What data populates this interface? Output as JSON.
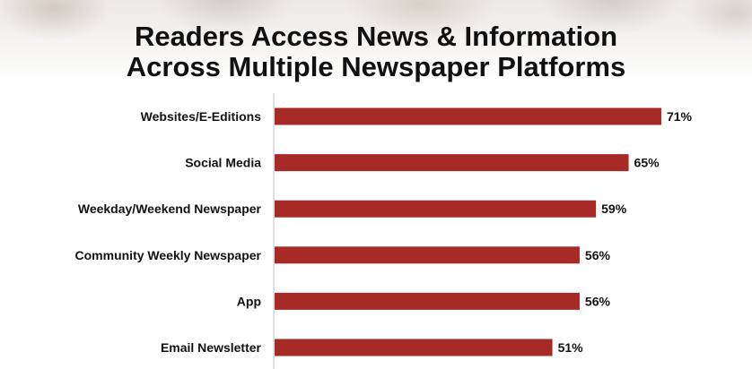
{
  "colors": {
    "bar": "#a72a27",
    "axis": "#bfbfbf",
    "text": "#111111"
  },
  "chart_data": {
    "type": "bar",
    "orientation": "horizontal",
    "title_lines": [
      "Readers Access News & Information",
      "Across Multiple Newspaper Platforms"
    ],
    "categories": [
      "Websites/E-Editions",
      "Social Media",
      "Weekday/Weekend Newspaper",
      "Community Weekly Newspaper",
      "App",
      "Email Newsletter"
    ],
    "values": [
      71,
      65,
      59,
      56,
      56,
      51
    ],
    "value_labels": [
      "71%",
      "65%",
      "59%",
      "56%",
      "56%",
      "51%"
    ],
    "xlim": [
      0,
      100
    ],
    "grid": false,
    "legend": "none"
  }
}
